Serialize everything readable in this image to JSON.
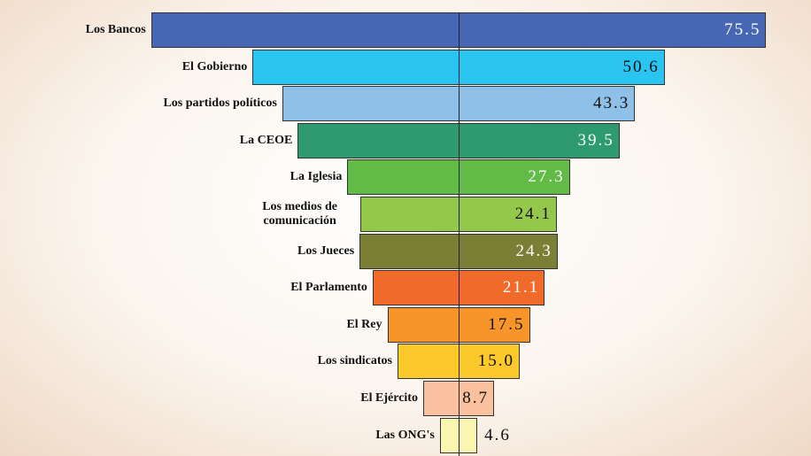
{
  "chart_data": {
    "type": "funnel",
    "categories": [
      "Los Bancos",
      "El Gobierno",
      "Los partidos políticos",
      "La CEOE",
      "La Iglesia",
      "Los medios de comunicación",
      "Los Jueces",
      "El Parlamento",
      "El Rey",
      "Los sindicatos",
      "El Ejército",
      "Las ONG's"
    ],
    "values": [
      75.5,
      50.6,
      43.3,
      39.5,
      27.3,
      24.1,
      24.3,
      21.1,
      17.5,
      15.0,
      8.7,
      4.6
    ],
    "value_labels": [
      "75.5",
      "50.6",
      "43.3",
      "39.5",
      "27.3",
      "24.1",
      "24.3",
      "21.1",
      "17.5",
      "15.0",
      "8.7",
      "4.6"
    ],
    "colors": [
      "#4766b4",
      "#29c4f0",
      "#8fc0e8",
      "#2e9a70",
      "#62bb46",
      "#93c84a",
      "#7b7f35",
      "#f06b2a",
      "#f7952a",
      "#fcc92c",
      "#f9c19e",
      "#fbf6b0"
    ]
  }
}
